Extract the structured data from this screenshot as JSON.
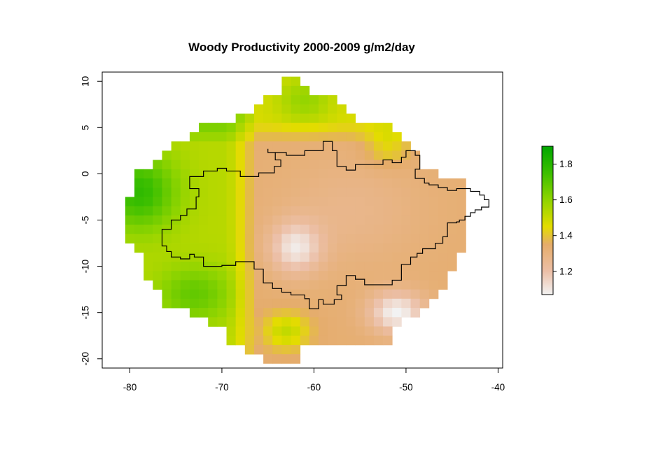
{
  "chart_data": {
    "type": "heatmap",
    "title": "Woody Productivity 2000-2009 g/m2/day",
    "xlabel": "",
    "ylabel": "",
    "xlim": [
      -83,
      -39.5
    ],
    "ylim": [
      -21,
      11
    ],
    "x_ticks": [
      -80,
      -70,
      -60,
      -50,
      -40
    ],
    "y_ticks": [
      10,
      5,
      0,
      -5,
      -10,
      -15,
      -20
    ],
    "grid": false,
    "cell_size_degrees": 1,
    "color_scale": {
      "min": 1.07,
      "max": 1.9,
      "ticks": [
        1.2,
        1.4,
        1.6,
        1.8
      ],
      "stops": [
        {
          "value": 1.07,
          "color": "#f2f2f2"
        },
        {
          "value": 1.2,
          "color": "#ecbfa7"
        },
        {
          "value": 1.35,
          "color": "#e5ac6a"
        },
        {
          "value": 1.45,
          "color": "#e3dc00"
        },
        {
          "value": 1.6,
          "color": "#8fd400"
        },
        {
          "value": 1.75,
          "color": "#3cbf00"
        },
        {
          "value": 1.9,
          "color": "#00a600"
        }
      ],
      "legend_position": "right"
    },
    "field": {
      "rows": [
        {
          "y": 10,
          "segments": [
            [
              -63,
              -62
            ]
          ]
        },
        {
          "y": 9,
          "segments": [
            [
              -63,
              -61
            ]
          ]
        },
        {
          "y": 8,
          "segments": [
            [
              -65,
              -58
            ]
          ]
        },
        {
          "y": 7,
          "segments": [
            [
              -66,
              -57
            ]
          ]
        },
        {
          "y": 6,
          "segments": [
            [
              -68,
              -56
            ]
          ]
        },
        {
          "y": 5,
          "segments": [
            [
              -72,
              -52
            ]
          ]
        },
        {
          "y": 4,
          "segments": [
            [
              -73,
              -51
            ]
          ]
        },
        {
          "y": 3,
          "segments": [
            [
              -75,
              -50
            ]
          ]
        },
        {
          "y": 2,
          "segments": [
            [
              -76,
              -49
            ]
          ]
        },
        {
          "y": 1,
          "segments": [
            [
              -77,
              -49
            ]
          ]
        },
        {
          "y": 0,
          "segments": [
            [
              -79,
              -47
            ]
          ]
        },
        {
          "y": -1,
          "segments": [
            [
              -79,
              -44
            ]
          ]
        },
        {
          "y": -2,
          "segments": [
            [
              -79,
              -44
            ]
          ]
        },
        {
          "y": -3,
          "segments": [
            [
              -80,
              -44
            ]
          ]
        },
        {
          "y": -4,
          "segments": [
            [
              -80,
              -44
            ]
          ]
        },
        {
          "y": -5,
          "segments": [
            [
              -80,
              -44
            ]
          ]
        },
        {
          "y": -6,
          "segments": [
            [
              -80,
              -44
            ]
          ]
        },
        {
          "y": -7,
          "segments": [
            [
              -80,
              -44
            ]
          ]
        },
        {
          "y": -8,
          "segments": [
            [
              -79,
              -44
            ]
          ]
        },
        {
          "y": -9,
          "segments": [
            [
              -78,
              -45
            ]
          ]
        },
        {
          "y": -10,
          "segments": [
            [
              -78,
              -45
            ]
          ]
        },
        {
          "y": -11,
          "segments": [
            [
              -78,
              -46
            ]
          ]
        },
        {
          "y": -12,
          "segments": [
            [
              -77,
              -46
            ]
          ]
        },
        {
          "y": -13,
          "segments": [
            [
              -76,
              -47
            ]
          ]
        },
        {
          "y": -14,
          "segments": [
            [
              -76,
              -48
            ]
          ]
        },
        {
          "y": -15,
          "segments": [
            [
              -73,
              -49
            ]
          ]
        },
        {
          "y": -16,
          "segments": [
            [
              -71,
              -51
            ]
          ]
        },
        {
          "y": -17,
          "segments": [
            [
              -69,
              -52
            ]
          ]
        },
        {
          "y": -18,
          "segments": [
            [
              -69,
              -52
            ]
          ]
        },
        {
          "y": -19,
          "segments": [
            [
              -67,
              -62
            ]
          ]
        },
        {
          "y": -20,
          "segments": [
            [
              -65,
              -62
            ]
          ]
        }
      ],
      "regions": [
        {
          "x": -79,
          "y": -2,
          "sx": 4,
          "sy": 4,
          "amp": 0.25
        },
        {
          "x": -73,
          "y": -13,
          "sx": 4,
          "sy": 3,
          "amp": 0.15
        },
        {
          "x": -63,
          "y": -17,
          "sx": 2.5,
          "sy": 2,
          "amp": 0.18
        },
        {
          "x": -61,
          "y": 8,
          "sx": 3,
          "sy": 2.5,
          "amp": 0.12
        },
        {
          "x": -52,
          "y": 3,
          "sx": 2.5,
          "sy": 2,
          "amp": 0.12
        },
        {
          "x": -62,
          "y": -8,
          "sx": 2.8,
          "sy": 2.8,
          "amp": -0.22
        },
        {
          "x": -51,
          "y": -15,
          "sx": 3,
          "sy": 2.2,
          "amp": -0.26
        },
        {
          "x": -56,
          "y": -4,
          "sx": 8,
          "sy": 6,
          "amp": -0.06
        }
      ]
    },
    "outline": [
      [
        -65,
        2.7
      ],
      [
        -65,
        2.3
      ],
      [
        -63,
        2.3
      ],
      [
        -63,
        2
      ],
      [
        -61,
        2
      ],
      [
        -61,
        2.5
      ],
      [
        -59,
        2.5
      ],
      [
        -59,
        3.5
      ],
      [
        -58,
        3.5
      ],
      [
        -58,
        2.5
      ],
      [
        -57.5,
        2.5
      ],
      [
        -57.5,
        0.8
      ],
      [
        -56.5,
        0.8
      ],
      [
        -56.5,
        0.4
      ],
      [
        -55.5,
        0.4
      ],
      [
        -55.5,
        1
      ],
      [
        -52.5,
        1
      ],
      [
        -52.5,
        1.5
      ],
      [
        -51.5,
        1.5
      ],
      [
        -51.5,
        1.2
      ],
      [
        -50.5,
        1.2
      ],
      [
        -50.5,
        1.8
      ],
      [
        -50,
        1.8
      ],
      [
        -50,
        2.5
      ],
      [
        -49,
        2.5
      ],
      [
        -49,
        2
      ],
      [
        -48.5,
        2
      ],
      [
        -48.5,
        0.5
      ],
      [
        -49,
        0.5
      ],
      [
        -49,
        -0.5
      ],
      [
        -48,
        -0.5
      ],
      [
        -48,
        -1
      ],
      [
        -47.5,
        -1
      ],
      [
        -47.5,
        -1.2
      ],
      [
        -46.5,
        -1.2
      ],
      [
        -46.5,
        -1.5
      ],
      [
        -45.5,
        -1.5
      ],
      [
        -45.5,
        -1.8
      ],
      [
        -44.5,
        -1.8
      ],
      [
        -44.5,
        -1.6
      ],
      [
        -43,
        -1.6
      ],
      [
        -43,
        -1.9
      ],
      [
        -42,
        -1.9
      ],
      [
        -42,
        -2.3
      ],
      [
        -41.5,
        -2.3
      ],
      [
        -41.5,
        -2.8
      ],
      [
        -41,
        -2.8
      ],
      [
        -41,
        -3.6
      ],
      [
        -41.8,
        -3.6
      ],
      [
        -41.8,
        -3.9
      ],
      [
        -42.5,
        -3.9
      ],
      [
        -42.5,
        -4.2
      ],
      [
        -43,
        -4.2
      ],
      [
        -43,
        -4.6
      ],
      [
        -43.6,
        -4.6
      ],
      [
        -43.6,
        -5
      ],
      [
        -44.2,
        -5
      ],
      [
        -44.2,
        -5.2
      ],
      [
        -44.5,
        -5.2
      ],
      [
        -44.5,
        -5.3
      ],
      [
        -45.5,
        -5.3
      ],
      [
        -45.5,
        -6.8
      ],
      [
        -46,
        -6.8
      ],
      [
        -46,
        -7.5
      ],
      [
        -46.8,
        -7.5
      ],
      [
        -46.8,
        -8.1
      ],
      [
        -48.2,
        -8.1
      ],
      [
        -48.2,
        -8.6
      ],
      [
        -48.8,
        -8.6
      ],
      [
        -48.8,
        -9
      ],
      [
        -49.5,
        -9
      ],
      [
        -49.5,
        -9.8
      ],
      [
        -50.5,
        -9.8
      ],
      [
        -50.5,
        -11.5
      ],
      [
        -51.5,
        -11.5
      ],
      [
        -51.5,
        -12
      ],
      [
        -54.5,
        -12
      ],
      [
        -54.5,
        -11.4
      ],
      [
        -55.5,
        -11.4
      ],
      [
        -55.5,
        -11
      ],
      [
        -56.5,
        -11
      ],
      [
        -56.5,
        -12.1
      ],
      [
        -57.5,
        -12.1
      ],
      [
        -57.5,
        -13.1
      ],
      [
        -57,
        -13.1
      ],
      [
        -57,
        -13.6
      ],
      [
        -57.8,
        -13.6
      ],
      [
        -57.8,
        -14.1
      ],
      [
        -59,
        -14.1
      ],
      [
        -59,
        -13.6
      ],
      [
        -59.5,
        -13.6
      ],
      [
        -59.5,
        -14.6
      ],
      [
        -60.5,
        -14.6
      ],
      [
        -60.5,
        -13.5
      ],
      [
        -61,
        -13.5
      ],
      [
        -61,
        -13.1
      ],
      [
        -62.5,
        -13.1
      ],
      [
        -62.5,
        -12.8
      ],
      [
        -63.5,
        -12.8
      ],
      [
        -63.5,
        -12.4
      ],
      [
        -64.5,
        -12.4
      ],
      [
        -64.5,
        -11.8
      ],
      [
        -65.5,
        -11.8
      ],
      [
        -65.5,
        -10.3
      ],
      [
        -66.5,
        -10.3
      ],
      [
        -66.5,
        -9.5
      ],
      [
        -68.5,
        -9.5
      ],
      [
        -68.5,
        -9.9
      ],
      [
        -70,
        -9.9
      ],
      [
        -70,
        -10
      ],
      [
        -72,
        -10
      ],
      [
        -72,
        -9
      ],
      [
        -73,
        -9
      ],
      [
        -73,
        -8.7
      ],
      [
        -73.5,
        -8.7
      ],
      [
        -73.5,
        -9.2
      ],
      [
        -74.5,
        -9.2
      ],
      [
        -74.5,
        -9
      ],
      [
        -75.5,
        -9
      ],
      [
        -75.5,
        -8.4
      ],
      [
        -76,
        -8.4
      ],
      [
        -76,
        -7.8
      ],
      [
        -76.5,
        -7.8
      ],
      [
        -76.5,
        -6
      ],
      [
        -75.5,
        -6
      ],
      [
        -75.5,
        -5
      ],
      [
        -74.5,
        -5
      ],
      [
        -74.5,
        -4.5
      ],
      [
        -73.8,
        -4.5
      ],
      [
        -73.8,
        -3.8
      ],
      [
        -72.8,
        -3.8
      ],
      [
        -72.8,
        -2.5
      ],
      [
        -72.5,
        -2.5
      ],
      [
        -72.5,
        -1.6
      ],
      [
        -73.5,
        -1.6
      ],
      [
        -73.5,
        -0.3
      ],
      [
        -72,
        -0.3
      ],
      [
        -72,
        0.3
      ],
      [
        -70.5,
        0.3
      ],
      [
        -70.5,
        0.6
      ],
      [
        -69.5,
        0.6
      ],
      [
        -69.5,
        0.3
      ],
      [
        -68,
        0.3
      ],
      [
        -68,
        -0.3
      ],
      [
        -66,
        -0.3
      ],
      [
        -66,
        0.1
      ],
      [
        -64.3,
        0.1
      ],
      [
        -64.3,
        0.8
      ],
      [
        -63.6,
        0.8
      ],
      [
        -63.6,
        1.5
      ],
      [
        -64.2,
        1.5
      ],
      [
        -64.2,
        2.3
      ],
      [
        -65,
        2.3
      ],
      [
        -65,
        2.7
      ]
    ]
  }
}
